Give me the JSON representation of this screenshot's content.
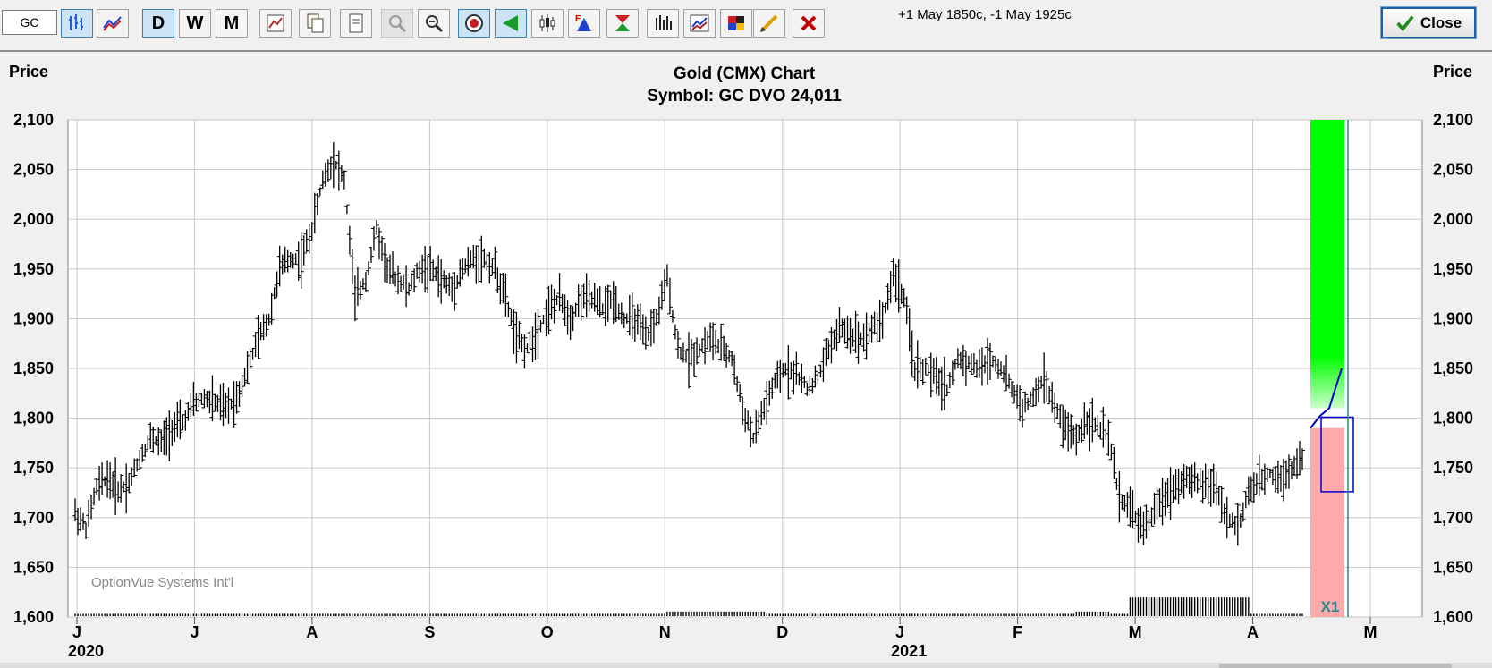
{
  "toolbar": {
    "symbol_value": "GC",
    "status_text": "+1 May 1850c, -1 May 1925c",
    "close_label": "Close",
    "buttons": [
      {
        "id": "bar-chart",
        "icon": "bar-chart-icon",
        "active": true
      },
      {
        "id": "line-chart",
        "icon": "line-chart-icon",
        "active": false
      },
      {
        "id": "daily",
        "label": "D",
        "active": true
      },
      {
        "id": "weekly",
        "label": "W",
        "active": false
      },
      {
        "id": "monthly",
        "label": "M",
        "active": false
      },
      {
        "id": "chart-settings",
        "icon": "chart-settings-icon"
      },
      {
        "id": "copy",
        "icon": "copy-icon"
      },
      {
        "id": "print",
        "icon": "print-icon"
      },
      {
        "id": "zoom-in",
        "icon": "zoom-in-icon",
        "disabled": true
      },
      {
        "id": "zoom-out",
        "icon": "zoom-out-icon"
      },
      {
        "id": "target",
        "icon": "target-icon",
        "active": true
      },
      {
        "id": "arrow",
        "icon": "arrow-icon",
        "active": true
      },
      {
        "id": "candlestick",
        "icon": "candlestick-icon"
      },
      {
        "id": "expected-move",
        "icon": "expected-move-icon"
      },
      {
        "id": "triangle",
        "icon": "triangle-icon"
      },
      {
        "id": "volume",
        "icon": "volume-icon"
      },
      {
        "id": "study",
        "icon": "study-icon"
      },
      {
        "id": "palette",
        "icon": "palette-icon"
      },
      {
        "id": "pencil",
        "icon": "pencil-icon"
      },
      {
        "id": "delete",
        "icon": "delete-icon"
      }
    ],
    "colors": {
      "active": "#cde4f7",
      "delete": "#c00000",
      "close_check": "#1d8a1d"
    }
  },
  "chart": {
    "title": "Gold (CMX) Chart",
    "subtitle": "Symbol: GC  DVO 24,011",
    "left_axis_label": "Price",
    "right_axis_label": "Price",
    "watermark": "OptionVue Systems Int'l",
    "marker_label": "X1",
    "colors": {
      "up_zone": "#00ff00",
      "down_zone": "#ffaaaa",
      "projection_line": "#0000cc",
      "marker": "#1e8c8c",
      "grid": "#c8c8c8"
    }
  },
  "chart_data": {
    "type": "ohlc-bar",
    "ylim": [
      1600,
      2100
    ],
    "y_ticks": [
      "1,600",
      "1,650",
      "1,700",
      "1,750",
      "1,800",
      "1,850",
      "1,900",
      "1,950",
      "2,000",
      "2,050",
      "2,100"
    ],
    "x_ticks": [
      {
        "label": "J",
        "year": "2020"
      },
      {
        "label": "J"
      },
      {
        "label": "A"
      },
      {
        "label": "S"
      },
      {
        "label": "O"
      },
      {
        "label": "N"
      },
      {
        "label": "D"
      },
      {
        "label": "J",
        "year": "2021"
      },
      {
        "label": "F"
      },
      {
        "label": "M"
      },
      {
        "label": "A"
      },
      {
        "label": "M"
      }
    ],
    "price_path": [
      [
        0,
        1705
      ],
      [
        2,
        1690
      ],
      [
        4,
        1730
      ],
      [
        6,
        1740
      ],
      [
        8,
        1728
      ],
      [
        10,
        1735
      ],
      [
        12,
        1760
      ],
      [
        14,
        1780
      ],
      [
        16,
        1775
      ],
      [
        18,
        1790
      ],
      [
        20,
        1795
      ],
      [
        22,
        1815
      ],
      [
        24,
        1820
      ],
      [
        26,
        1815
      ],
      [
        28,
        1810
      ],
      [
        30,
        1820
      ],
      [
        32,
        1850
      ],
      [
        34,
        1880
      ],
      [
        36,
        1900
      ],
      [
        38,
        1950
      ],
      [
        40,
        1960
      ],
      [
        42,
        1960
      ],
      [
        44,
        1990
      ],
      [
        46,
        2040
      ],
      [
        48,
        2060
      ],
      [
        50,
        2040
      ],
      [
        52,
        1920
      ],
      [
        54,
        1940
      ],
      [
        56,
        1990
      ],
      [
        58,
        1950
      ],
      [
        60,
        1940
      ],
      [
        62,
        1930
      ],
      [
        64,
        1950
      ],
      [
        66,
        1950
      ],
      [
        68,
        1940
      ],
      [
        70,
        1930
      ],
      [
        72,
        1950
      ],
      [
        74,
        1960
      ],
      [
        76,
        1960
      ],
      [
        78,
        1950
      ],
      [
        80,
        1920
      ],
      [
        82,
        1880
      ],
      [
        84,
        1870
      ],
      [
        86,
        1890
      ],
      [
        88,
        1910
      ],
      [
        90,
        1920
      ],
      [
        92,
        1900
      ],
      [
        94,
        1920
      ],
      [
        96,
        1920
      ],
      [
        98,
        1910
      ],
      [
        100,
        1920
      ],
      [
        102,
        1900
      ],
      [
        104,
        1900
      ],
      [
        106,
        1880
      ],
      [
        108,
        1900
      ],
      [
        110,
        1940
      ],
      [
        112,
        1870
      ],
      [
        114,
        1860
      ],
      [
        116,
        1870
      ],
      [
        118,
        1880
      ],
      [
        120,
        1870
      ],
      [
        122,
        1860
      ],
      [
        124,
        1810
      ],
      [
        126,
        1780
      ],
      [
        128,
        1810
      ],
      [
        130,
        1835
      ],
      [
        132,
        1850
      ],
      [
        134,
        1845
      ],
      [
        136,
        1830
      ],
      [
        138,
        1840
      ],
      [
        140,
        1870
      ],
      [
        142,
        1890
      ],
      [
        144,
        1885
      ],
      [
        146,
        1880
      ],
      [
        148,
        1890
      ],
      [
        150,
        1900
      ],
      [
        152,
        1945
      ],
      [
        154,
        1920
      ],
      [
        156,
        1850
      ],
      [
        158,
        1850
      ],
      [
        160,
        1840
      ],
      [
        162,
        1830
      ],
      [
        164,
        1860
      ],
      [
        166,
        1855
      ],
      [
        168,
        1850
      ],
      [
        170,
        1860
      ],
      [
        172,
        1850
      ],
      [
        174,
        1830
      ],
      [
        176,
        1810
      ],
      [
        178,
        1820
      ],
      [
        180,
        1840
      ],
      [
        182,
        1810
      ],
      [
        184,
        1790
      ],
      [
        186,
        1780
      ],
      [
        188,
        1800
      ],
      [
        190,
        1790
      ],
      [
        192,
        1780
      ],
      [
        194,
        1720
      ],
      [
        196,
        1710
      ],
      [
        198,
        1690
      ],
      [
        200,
        1700
      ],
      [
        202,
        1720
      ],
      [
        204,
        1730
      ],
      [
        206,
        1740
      ],
      [
        208,
        1735
      ],
      [
        210,
        1735
      ],
      [
        212,
        1730
      ],
      [
        214,
        1700
      ],
      [
        216,
        1690
      ],
      [
        218,
        1725
      ],
      [
        220,
        1735
      ],
      [
        222,
        1745
      ],
      [
        224,
        1740
      ],
      [
        226,
        1750
      ],
      [
        228,
        1760
      ]
    ],
    "volume_bars": [
      {
        "from": 160,
        "to": 170,
        "height": 1
      },
      {
        "from": 110,
        "to": 128,
        "height": 2
      },
      {
        "from": 186,
        "to": 192,
        "height": 2
      },
      {
        "from": 196,
        "to": 218,
        "height": 8
      }
    ],
    "projection": {
      "pink_zone": {
        "from": 1600,
        "to": 1790
      },
      "green_zone": {
        "from": 1810,
        "to": 2100
      },
      "line": [
        [
          1790,
          0
        ],
        [
          1802,
          0.3
        ],
        [
          1810,
          0.6
        ],
        [
          1850,
          1
        ]
      ],
      "box": {
        "from": 1726,
        "to": 1801
      },
      "marker_label": "X1"
    }
  }
}
